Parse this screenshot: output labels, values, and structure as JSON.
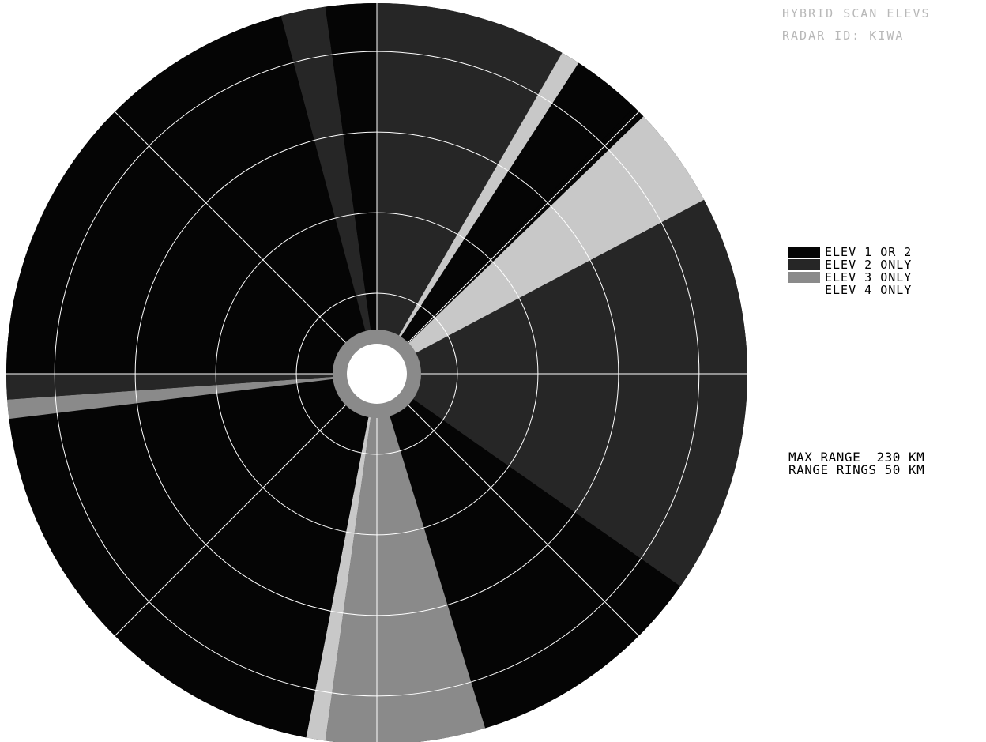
{
  "title": {
    "line1": "HYBRID SCAN ELEVS",
    "line2": "RADAR ID: KIWA"
  },
  "legend": [
    {
      "label": "ELEV 1 OR 2",
      "color": "#050505"
    },
    {
      "label": "ELEV 2 ONLY",
      "color": "#262626"
    },
    {
      "label": "ELEV 3 ONLY",
      "color": "#8a8a8a"
    },
    {
      "label": "ELEV 4 ONLY",
      "color": "#c8c8c8"
    }
  ],
  "range": {
    "max_range": "MAX RANGE  230 KM",
    "range_rings": "RANGE RINGS 50 KM",
    "max_km": 230,
    "ring_interval_km": 50
  },
  "colors": {
    "elev12": "#050505",
    "elev2": "#262626",
    "elev3": "#8a8a8a",
    "elev4": "#c8c8c8",
    "grid": "#ffffff",
    "center": "#ffffff"
  },
  "sectors": [
    {
      "name": "north-west-elev12",
      "from_deg": 270,
      "to_deg": 345,
      "elev": "elev12"
    },
    {
      "name": "north-band-a",
      "from_deg": 345,
      "to_deg": 352,
      "elev": "elev2"
    },
    {
      "name": "north-band-b",
      "from_deg": 352,
      "to_deg": 360,
      "elev": "elev12"
    },
    {
      "name": "north-east-elev2",
      "from_deg": 0,
      "to_deg": 30,
      "elev": "elev2"
    },
    {
      "name": "ne-beam-elev4",
      "from_deg": 30,
      "to_deg": 33,
      "elev": "elev4"
    },
    {
      "name": "ne-gap-elev12",
      "from_deg": 33,
      "to_deg": 44,
      "elev": "elev12"
    },
    {
      "name": "ne-beam-elev12",
      "from_deg": 44,
      "to_deg": 46,
      "elev": "elev12"
    },
    {
      "name": "ne-wedge-elev4",
      "from_deg": 46,
      "to_deg": 62,
      "elev": "elev4"
    },
    {
      "name": "east-elev2",
      "from_deg": 62,
      "to_deg": 125,
      "elev": "elev2"
    },
    {
      "name": "south-east-elev12",
      "from_deg": 125,
      "to_deg": 163,
      "elev": "elev12"
    },
    {
      "name": "south-elev3",
      "from_deg": 163,
      "to_deg": 188,
      "elev": "elev3"
    },
    {
      "name": "south-beam-elev4",
      "from_deg": 188,
      "to_deg": 191,
      "elev": "elev4"
    },
    {
      "name": "south-west-elev12",
      "from_deg": 191,
      "to_deg": 263,
      "elev": "elev12"
    },
    {
      "name": "west-band-elev3",
      "from_deg": 263,
      "to_deg": 266,
      "elev": "elev3"
    },
    {
      "name": "west-band-elev2",
      "from_deg": 266,
      "to_deg": 270,
      "elev": "elev2"
    }
  ]
}
